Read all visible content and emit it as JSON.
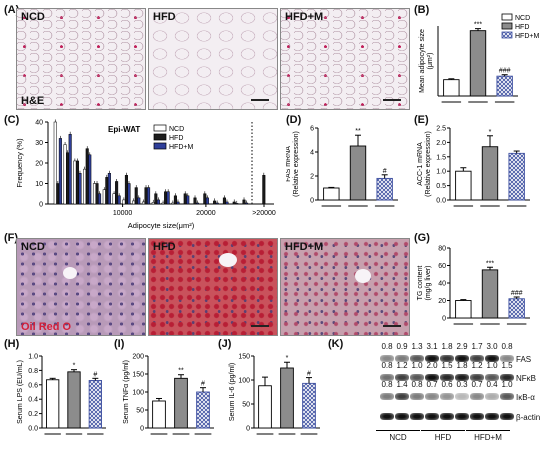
{
  "panels": {
    "A": {
      "letter": "(A)",
      "labels": [
        "NCD",
        "HFD",
        "HFD+M"
      ],
      "stain": "H&E"
    },
    "B": {
      "letter": "(B)"
    },
    "C": {
      "letter": "(C)"
    },
    "D": {
      "letter": "(D)"
    },
    "E": {
      "letter": "(E)"
    },
    "F": {
      "letter": "(F)",
      "labels": [
        "NCD",
        "HFD",
        "HFD+M"
      ],
      "stain": "Oil Red O"
    },
    "G": {
      "letter": "(G)"
    },
    "H": {
      "letter": "(H)"
    },
    "I": {
      "letter": "(I)"
    },
    "J": {
      "letter": "(J)"
    },
    "K": {
      "letter": "(K)"
    }
  },
  "legend": {
    "entries": [
      "NCD",
      "HFD",
      "HFD+M"
    ],
    "colors": [
      "#ffffff",
      "#8c8c8c",
      "#9aa6d6"
    ]
  },
  "chart_data": [
    {
      "id": "B",
      "type": "bar",
      "categories": [
        "NCD",
        "HFD",
        "HFD+M"
      ],
      "values": [
        2800,
        11200,
        3400
      ],
      "errors": [
        150,
        350,
        250
      ],
      "ylabel": "Mean adipocyte size(μm²)",
      "ylim": [
        0,
        12000
      ],
      "sig": [
        "",
        "***",
        "###"
      ],
      "legend_placement": "top-right"
    },
    {
      "id": "C",
      "type": "bar",
      "title": "Epi-WAT",
      "xlabel": "Adipocyte size(μm²)",
      "ylabel": "Frequency (%)",
      "ylim": [
        0,
        40
      ],
      "xticks": [
        "10000",
        "20000",
        ">20000"
      ],
      "yticks": [
        "0",
        "10",
        "20",
        "30",
        "40"
      ],
      "series": [
        {
          "name": "NCD",
          "values": [
            40,
            29,
            21,
            17,
            10,
            7,
            5,
            2,
            1.5,
            1,
            0.8,
            0.5,
            0.5,
            0,
            0,
            0,
            0,
            0,
            0,
            0,
            0
          ]
        },
        {
          "name": "HFD",
          "values": [
            10,
            25,
            21,
            27,
            10,
            13,
            11,
            14,
            8,
            8,
            5,
            6,
            4,
            5,
            3,
            5,
            1.5,
            3,
            1,
            2,
            14
          ]
        },
        {
          "name": "HFD+M",
          "values": [
            32,
            34,
            15,
            24,
            5,
            15,
            4,
            10,
            3,
            8,
            2,
            6,
            1,
            4,
            0.5,
            3,
            0.5,
            1,
            0.3,
            0.5,
            0
          ]
        }
      ]
    },
    {
      "id": "D",
      "type": "bar",
      "categories": [
        "NCD",
        "HFD",
        "HFD+M"
      ],
      "values": [
        1.0,
        4.5,
        1.8
      ],
      "errors": [
        0.05,
        0.9,
        0.3
      ],
      "ylabel": "FAS mRNA (Relative expression)",
      "ylim": [
        0,
        6
      ],
      "yticks": [
        "0",
        "2",
        "4",
        "6"
      ],
      "sig": [
        "",
        "**",
        "#"
      ]
    },
    {
      "id": "E",
      "type": "bar",
      "categories": [
        "NCD",
        "HFD",
        "HFD+M"
      ],
      "values": [
        1.0,
        1.85,
        1.62
      ],
      "errors": [
        0.12,
        0.38,
        0.08
      ],
      "ylabel": "ACC-1 mRNA (Relative expression)",
      "ylim": [
        0,
        2.5
      ],
      "yticks": [
        "0.0",
        "0.5",
        "1.0",
        "1.5",
        "2.0",
        "2.5"
      ],
      "sig": [
        "",
        "*",
        ""
      ]
    },
    {
      "id": "G",
      "type": "bar",
      "categories": [
        "NCD",
        "HFD",
        "HFD+M"
      ],
      "values": [
        20,
        55,
        22
      ],
      "errors": [
        1,
        3,
        2
      ],
      "ylabel": "TG content (mg/g liver)",
      "ylim": [
        0,
        80
      ],
      "yticks": [
        "0",
        "20",
        "40",
        "60",
        "80"
      ],
      "sig": [
        "",
        "***",
        "###"
      ]
    },
    {
      "id": "H",
      "type": "bar",
      "categories": [
        "NCD",
        "HFD",
        "HFD+M"
      ],
      "values": [
        0.67,
        0.78,
        0.66
      ],
      "errors": [
        0.02,
        0.03,
        0.03
      ],
      "ylabel": "Serum LPS (EU/mL)",
      "ylim": [
        0,
        1.0
      ],
      "yticks": [
        "0.0",
        "0.2",
        "0.4",
        "0.6",
        "0.8",
        "1.0"
      ],
      "sig": [
        "",
        "*",
        "#"
      ]
    },
    {
      "id": "I",
      "type": "bar",
      "categories": [
        "NCD",
        "HFD",
        "HFD+M"
      ],
      "values": [
        75,
        138,
        100
      ],
      "errors": [
        7,
        10,
        12
      ],
      "ylabel": "Serum TNFα (pg/ml)",
      "ylim": [
        0,
        200
      ],
      "yticks": [
        "0",
        "50",
        "100",
        "150",
        "200"
      ],
      "sig": [
        "",
        "**",
        "#"
      ]
    },
    {
      "id": "J",
      "type": "bar",
      "categories": [
        "NCD",
        "HFD",
        "HFD+M"
      ],
      "values": [
        88,
        125,
        93
      ],
      "errors": [
        18,
        12,
        12
      ],
      "ylabel": "Serum IL-6 (pg/ml)",
      "ylim": [
        0,
        150
      ],
      "yticks": [
        "0",
        "50",
        "100",
        "150"
      ],
      "sig": [
        "",
        "*",
        "#"
      ]
    }
  ],
  "western": {
    "proteins": [
      "FAS",
      "NFκB",
      "IκB-α",
      "β-actin"
    ],
    "rows": [
      [
        "0.8",
        "0.9",
        "1.3",
        "3.1",
        "1.8",
        "2.9",
        "1.7",
        "3.0",
        "0.8"
      ],
      [
        "0.8",
        "1.2",
        "1.0",
        "2.0",
        "1.5",
        "1.8",
        "1.2",
        "1.0",
        "1.5"
      ],
      [
        "0.8",
        "1.4",
        "0.8",
        "0.7",
        "0.6",
        "0.3",
        "0.7",
        "0.4",
        "1.0"
      ]
    ],
    "groups": [
      "NCD",
      "HFD",
      "HFD+M"
    ]
  }
}
